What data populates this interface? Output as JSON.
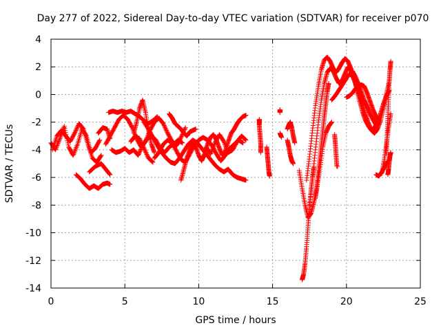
{
  "chart_data": {
    "type": "scatter",
    "title": "Day 277 of 2022, Sidereal Day-to-day VTEC variation (SDTVAR) for receiver p070",
    "xlabel": "GPS time / hours",
    "ylabel": "SDTVAR / TECUs",
    "xlim": [
      0,
      25
    ],
    "ylim": [
      -14,
      4
    ],
    "xticks": [
      "0",
      "5",
      "10",
      "15",
      "20",
      "25"
    ],
    "yticks": [
      "-14",
      "-12",
      "-10",
      "-8",
      "-6",
      "-4",
      "-2",
      "0",
      "2",
      "4"
    ],
    "grid": true,
    "marker": "+",
    "color": "#ff0000",
    "series": [
      {
        "name": "t0",
        "x": [
          0.0,
          0.3,
          0.6,
          0.9,
          1.2,
          1.5,
          1.8,
          2.1,
          2.4,
          2.7,
          3.0,
          3.3
        ],
        "y": [
          -3.5,
          -4.0,
          -3.2,
          -2.3,
          -3.8,
          -4.4,
          -3.6,
          -2.5,
          -3.0,
          -4.2,
          -3.9,
          -3.3
        ]
      },
      {
        "name": "t1",
        "x": [
          0.1,
          0.4,
          0.7,
          1.0,
          1.3,
          1.6,
          1.9,
          2.2,
          2.5,
          2.8,
          3.1,
          3.4
        ],
        "y": [
          -4.0,
          -3.0,
          -2.6,
          -3.0,
          -3.4,
          -2.8,
          -2.1,
          -2.5,
          -3.6,
          -4.6,
          -4.9,
          -4.4
        ]
      },
      {
        "name": "t2",
        "x": [
          1.7,
          2.0,
          2.3,
          2.6,
          2.9,
          3.2,
          3.5,
          3.8,
          4.0
        ],
        "y": [
          -5.8,
          -6.1,
          -6.5,
          -6.8,
          -6.6,
          -6.8,
          -6.5,
          -6.4,
          -6.5
        ]
      },
      {
        "name": "t3",
        "x": [
          2.6,
          3.0,
          3.4,
          3.7,
          4.0
        ],
        "y": [
          -5.6,
          -5.2,
          -5.0,
          -5.4,
          -5.8
        ]
      },
      {
        "name": "t4",
        "x": [
          3.2,
          3.5,
          3.8,
          4.0
        ],
        "y": [
          -2.8,
          -2.4,
          -2.5,
          -3.2
        ]
      },
      {
        "name": "t5",
        "x": [
          3.7,
          4.0,
          4.3,
          4.6,
          4.9,
          5.2,
          5.5,
          5.8,
          6.1,
          6.4,
          6.7,
          7.0,
          7.3,
          7.6,
          7.9,
          8.2,
          8.5,
          8.8,
          9.1
        ],
        "y": [
          -3.6,
          -3.0,
          -2.4,
          -1.8,
          -1.5,
          -1.8,
          -2.4,
          -3.2,
          -3.8,
          -3.4,
          -2.6,
          -2.0,
          -1.7,
          -2.1,
          -2.8,
          -3.4,
          -3.7,
          -3.1,
          -2.4
        ]
      },
      {
        "name": "t6",
        "x": [
          3.9,
          4.2,
          4.5,
          4.8,
          5.1,
          5.4,
          5.7,
          6.0,
          6.3,
          6.6,
          6.9,
          7.2
        ],
        "y": [
          -1.3,
          -1.2,
          -1.3,
          -1.2,
          -1.3,
          -1.2,
          -1.4,
          -1.6,
          -1.9,
          -2.1,
          -1.9,
          -1.6
        ]
      },
      {
        "name": "t7",
        "x": [
          4.1,
          4.4,
          4.7,
          5.0,
          5.3,
          5.6,
          5.9,
          6.2,
          6.5,
          6.8,
          7.1,
          7.4,
          7.7,
          8.0,
          8.3,
          8.6,
          8.9
        ],
        "y": [
          -4.0,
          -4.2,
          -4.1,
          -3.9,
          -4.2,
          -4.0,
          -4.4,
          -3.7,
          -3.2,
          -3.0,
          -3.3,
          -3.9,
          -4.2,
          -3.8,
          -3.6,
          -3.3,
          -3.5
        ]
      },
      {
        "name": "t8",
        "x": [
          5.6,
          5.8,
          6.0,
          6.2,
          6.4,
          6.6,
          6.8,
          7.0
        ],
        "y": [
          -2.8,
          -2.0,
          -1.0,
          -0.4,
          -1.3,
          -2.6,
          -3.6,
          -4.2
        ]
      },
      {
        "name": "t9",
        "x": [
          5.4,
          5.7,
          6.0,
          6.3,
          6.6,
          6.9
        ],
        "y": [
          -3.4,
          -3.0,
          -3.2,
          -3.9,
          -4.6,
          -4.9
        ]
      },
      {
        "name": "t10",
        "x": [
          6.3,
          6.6,
          6.9,
          7.2,
          7.5,
          7.8,
          8.1,
          8.4,
          8.7,
          9.0,
          9.3,
          9.6,
          9.9,
          10.2,
          10.5,
          10.8,
          11.1,
          11.4,
          11.7,
          12.0,
          12.3,
          12.6,
          12.9,
          13.2
        ],
        "y": [
          -2.0,
          -2.5,
          -3.1,
          -3.7,
          -4.2,
          -4.6,
          -4.9,
          -5.0,
          -4.6,
          -4.1,
          -3.6,
          -3.3,
          -3.5,
          -3.9,
          -4.3,
          -4.7,
          -5.1,
          -5.4,
          -5.6,
          -5.4,
          -5.8,
          -6.0,
          -6.1,
          -6.2
        ]
      },
      {
        "name": "t11",
        "x": [
          7.0,
          7.3,
          7.6,
          7.9,
          8.2,
          8.5,
          8.8,
          9.1,
          9.4,
          9.7,
          10.0,
          10.3,
          10.6,
          10.9,
          11.2,
          11.5,
          11.8,
          12.1,
          12.4,
          12.7,
          13.0
        ],
        "y": [
          -4.6,
          -4.2,
          -3.6,
          -3.3,
          -3.5,
          -4.1,
          -4.7,
          -4.9,
          -4.3,
          -3.7,
          -3.3,
          -3.1,
          -3.3,
          -3.7,
          -4.3,
          -4.8,
          -4.4,
          -3.9,
          -3.6,
          -3.3,
          -3.5
        ]
      },
      {
        "name": "t12",
        "x": [
          8.0,
          8.2,
          8.4,
          8.6,
          8.8,
          9.0,
          9.2,
          9.4,
          9.6,
          9.8
        ],
        "y": [
          -1.4,
          -1.7,
          -2.1,
          -2.3,
          -2.5,
          -2.8,
          -3.0,
          -2.7,
          -2.6,
          -2.5
        ]
      },
      {
        "name": "t13",
        "x": [
          8.8,
          9.0,
          9.2,
          9.4,
          9.6,
          9.8,
          10.0,
          10.2,
          10.4,
          10.6,
          10.8,
          11.0,
          11.2,
          11.4,
          11.6,
          11.8,
          12.0,
          12.2,
          12.4,
          12.6,
          12.8,
          13.0,
          13.2
        ],
        "y": [
          -6.2,
          -5.4,
          -4.6,
          -4.0,
          -3.6,
          -3.8,
          -4.4,
          -4.8,
          -4.3,
          -3.6,
          -3.1,
          -2.9,
          -3.3,
          -3.9,
          -4.4,
          -4.1,
          -3.4,
          -2.8,
          -2.5,
          -2.1,
          -1.8,
          -1.6,
          -1.5
        ]
      },
      {
        "name": "t14",
        "x": [
          10.5,
          10.8,
          11.1,
          11.4,
          11.7,
          12.0,
          12.3,
          12.6,
          12.9,
          13.2
        ],
        "y": [
          -3.8,
          -4.3,
          -3.5,
          -2.9,
          -3.4,
          -4.2,
          -4.0,
          -3.4,
          -3.0,
          -3.3
        ]
      },
      {
        "name": "t15",
        "x": [
          14.1,
          14.1,
          14.15,
          14.2,
          14.2
        ],
        "y": [
          -1.8,
          -2.2,
          -2.9,
          -3.6,
          -4.2
        ]
      },
      {
        "name": "t16",
        "x": [
          14.6,
          14.65,
          14.7,
          14.75,
          14.8
        ],
        "y": [
          -3.8,
          -4.4,
          -5.0,
          -5.6,
          -5.9
        ]
      },
      {
        "name": "t17",
        "x": [
          15.5,
          15.5
        ],
        "y": [
          -1.1,
          -1.3
        ]
      },
      {
        "name": "t18",
        "x": [
          15.5,
          15.6
        ],
        "y": [
          -2.8,
          -3.1
        ]
      },
      {
        "name": "t19",
        "x": [
          16.0,
          16.1,
          16.2,
          16.3,
          16.4,
          16.5
        ],
        "y": [
          -2.5,
          -2.2,
          -2.0,
          -2.4,
          -3.0,
          -3.5
        ]
      },
      {
        "name": "t20",
        "x": [
          16.0,
          16.1,
          16.2,
          16.3,
          16.4
        ],
        "y": [
          -3.3,
          -3.8,
          -4.4,
          -4.8,
          -5.0
        ]
      },
      {
        "name": "t21",
        "x": [
          16.8,
          17.0,
          17.2,
          17.4,
          17.6,
          17.8,
          18.0,
          18.2,
          18.4,
          18.6,
          18.8,
          19.0
        ],
        "y": [
          -5.5,
          -6.8,
          -8.0,
          -8.9,
          -8.6,
          -7.8,
          -6.8,
          -5.4,
          -3.8,
          -2.8,
          -2.3,
          -2.0
        ]
      },
      {
        "name": "t22",
        "x": [
          17.0,
          17.1,
          17.2,
          17.3,
          17.4,
          17.5,
          17.6,
          17.7,
          17.8
        ],
        "y": [
          -13.4,
          -13.0,
          -12.2,
          -11.0,
          -9.5,
          -8.2,
          -7.0,
          -6.0,
          -5.2
        ]
      },
      {
        "name": "t23",
        "x": [
          17.3,
          17.5,
          17.7,
          17.9,
          18.1,
          18.3,
          18.5,
          18.7,
          18.9,
          19.1,
          19.3,
          19.5,
          19.7,
          19.9,
          20.1,
          20.3,
          20.5,
          20.7,
          20.9,
          21.1,
          21.3,
          21.5,
          21.7,
          21.9,
          22.1,
          22.3,
          22.5,
          22.7,
          22.9
        ],
        "y": [
          -6.2,
          -4.5,
          -2.6,
          -0.8,
          0.6,
          1.8,
          2.5,
          2.7,
          2.4,
          1.9,
          1.6,
          1.9,
          2.3,
          2.6,
          2.4,
          1.9,
          1.2,
          0.4,
          -0.5,
          -1.3,
          -1.9,
          -2.3,
          -2.6,
          -2.4,
          -2.0,
          -1.4,
          -0.7,
          -0.1,
          0.3
        ]
      },
      {
        "name": "t24",
        "x": [
          17.5,
          17.7,
          17.9,
          18.1,
          18.3,
          18.5,
          18.7,
          18.9,
          19.1,
          19.3,
          19.5,
          19.7,
          19.9,
          20.1,
          20.3,
          20.5,
          20.7,
          20.9,
          21.1,
          21.3,
          21.5,
          21.7,
          21.9,
          22.1,
          22.3,
          22.5,
          22.7,
          22.9
        ],
        "y": [
          -8.0,
          -6.0,
          -4.0,
          -2.0,
          -0.4,
          0.8,
          1.6,
          1.9,
          1.7,
          1.2,
          0.8,
          1.0,
          1.5,
          2.0,
          1.7,
          1.1,
          0.5,
          -0.2,
          -0.8,
          -1.5,
          -2.1,
          -2.6,
          -2.8,
          -2.5,
          -1.9,
          -1.0,
          0.0,
          1.0
        ]
      },
      {
        "name": "t25",
        "x": [
          17.9,
          18.0,
          18.1,
          18.2,
          18.3,
          18.4,
          18.5,
          18.6,
          18.7,
          18.8
        ],
        "y": [
          -7.5,
          -6.6,
          -5.6,
          -4.6,
          -3.6,
          -2.6,
          -1.6,
          -0.7,
          0.2,
          0.8
        ]
      },
      {
        "name": "t26",
        "x": [
          19.0,
          19.3,
          19.6,
          19.9,
          20.2,
          20.5,
          20.8,
          21.0
        ],
        "y": [
          -0.4,
          0.0,
          0.5,
          1.0,
          1.5,
          1.2,
          0.4,
          -0.4
        ]
      },
      {
        "name": "t27",
        "x": [
          19.2,
          19.25,
          19.3,
          19.35,
          19.4
        ],
        "y": [
          -2.9,
          -3.6,
          -4.4,
          -5.2,
          -5.2
        ]
      },
      {
        "name": "t28",
        "x": [
          20.0,
          20.2,
          20.4,
          20.6,
          20.8,
          21.0,
          21.2,
          21.4,
          21.6,
          21.8,
          22.0,
          22.2
        ],
        "y": [
          -0.2,
          -0.1,
          0.1,
          0.4,
          0.6,
          0.7,
          0.6,
          0.1,
          -0.5,
          -1.1,
          -1.6,
          -1.9
        ]
      },
      {
        "name": "t29",
        "x": [
          20.4,
          20.6,
          20.8,
          21.0,
          21.2,
          21.4,
          21.6,
          21.8,
          22.0
        ],
        "y": [
          1.7,
          1.3,
          0.8,
          0.2,
          -0.4,
          -0.9,
          -1.4,
          -1.8,
          -2.2
        ]
      },
      {
        "name": "t30",
        "x": [
          22.0,
          22.2,
          22.4,
          22.6,
          22.8
        ],
        "y": [
          -5.8,
          -5.9,
          -5.6,
          -5.2,
          -4.8
        ]
      },
      {
        "name": "t31",
        "x": [
          22.4,
          22.55,
          22.7,
          22.85,
          23.0
        ],
        "y": [
          -5.7,
          -4.8,
          -3.6,
          -2.4,
          -1.4
        ]
      },
      {
        "name": "t32",
        "x": [
          22.7,
          22.75,
          22.8,
          22.85,
          22.9,
          22.95,
          23.0
        ],
        "y": [
          -4.3,
          -3.0,
          -1.6,
          -0.2,
          1.0,
          1.8,
          2.4
        ]
      },
      {
        "name": "t33",
        "x": [
          22.8,
          22.85,
          22.9,
          22.95,
          23.0
        ],
        "y": [
          -5.8,
          -5.4,
          -4.8,
          -4.4,
          -4.2
        ]
      }
    ]
  }
}
